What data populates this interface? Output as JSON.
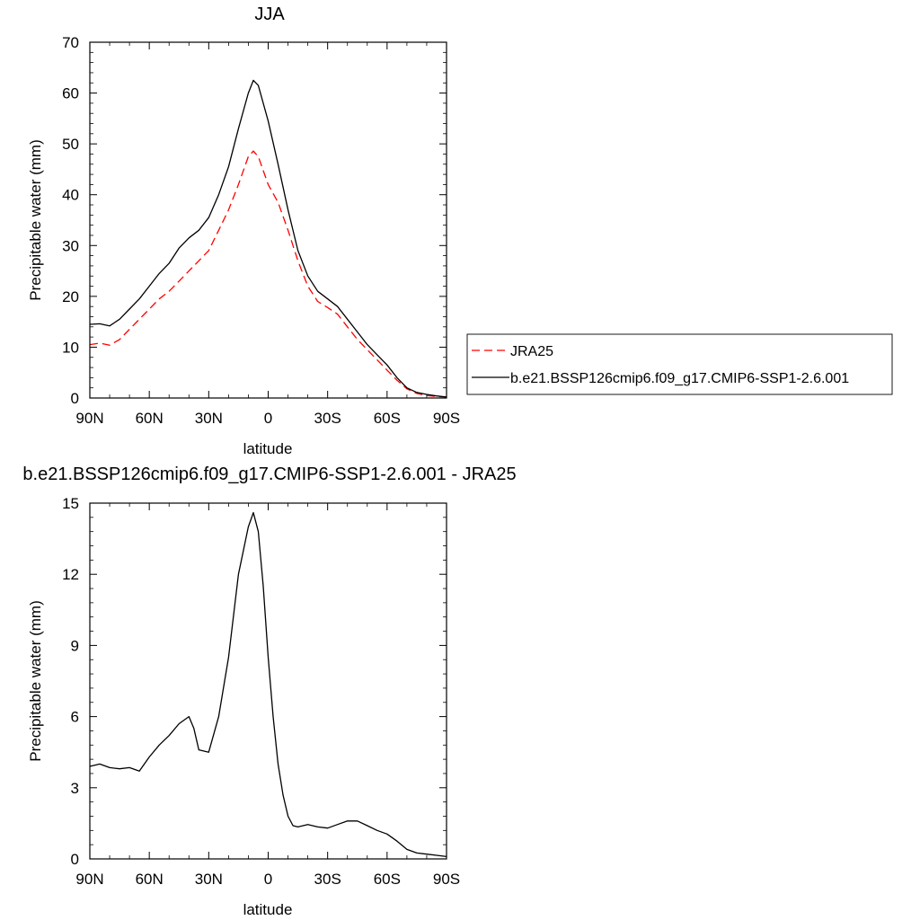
{
  "chart_data": [
    {
      "type": "line",
      "title": "JJA",
      "xlabel": "latitude",
      "ylabel": "Precipitable water (mm)",
      "xlim": [
        90,
        -90
      ],
      "ylim": [
        0,
        70
      ],
      "x_ticks": [
        90,
        60,
        30,
        0,
        -30,
        -60,
        -90
      ],
      "x_tick_labels": [
        "90N",
        "60N",
        "30N",
        "0",
        "30S",
        "60S",
        "90S"
      ],
      "y_ticks": [
        0,
        10,
        20,
        30,
        40,
        50,
        60,
        70
      ],
      "y_tick_labels": [
        "0",
        "10",
        "20",
        "30",
        "40",
        "50",
        "60",
        "70"
      ],
      "legend_position": "right",
      "series": [
        {
          "name": "JRA25",
          "color": "#ff0000",
          "dash": "dashed",
          "x": [
            90,
            85,
            80,
            75,
            70,
            65,
            60,
            55,
            50,
            45,
            40,
            35,
            30,
            25,
            20,
            15,
            10,
            7.5,
            5,
            0,
            -5,
            -10,
            -15,
            -20,
            -25,
            -30,
            -35,
            -40,
            -45,
            -50,
            -55,
            -60,
            -65,
            -70,
            -75,
            -80,
            -85,
            -90
          ],
          "values": [
            10.5,
            10.8,
            10.4,
            11.5,
            13.5,
            15.5,
            17.5,
            19.5,
            21,
            23,
            25,
            27,
            29,
            33,
            37,
            42,
            47.5,
            48.6,
            47.5,
            42,
            38.5,
            33,
            27,
            22,
            19,
            17.8,
            16.5,
            14,
            11.5,
            9.5,
            7.5,
            5.5,
            3.5,
            1.8,
            0.9,
            0.5,
            0.3,
            0.2
          ]
        },
        {
          "name": "b.e21.BSSP126cmip6.f09_g17.CMIP6-SSP1-2.6.001",
          "color": "#000000",
          "dash": "solid",
          "x": [
            90,
            85,
            80,
            75,
            70,
            65,
            60,
            55,
            50,
            45,
            40,
            35,
            30,
            25,
            20,
            15,
            10,
            7.5,
            5,
            0,
            -5,
            -10,
            -15,
            -20,
            -25,
            -30,
            -35,
            -40,
            -45,
            -50,
            -55,
            -60,
            -65,
            -70,
            -75,
            -80,
            -85,
            -90
          ],
          "values": [
            14.5,
            14.6,
            14.2,
            15.5,
            17.5,
            19.5,
            22,
            24.5,
            26.5,
            29.5,
            31.5,
            33,
            35.5,
            40,
            45.5,
            53,
            60,
            62.5,
            61.5,
            54.5,
            46,
            37,
            29,
            24,
            21,
            19.5,
            18,
            15.5,
            13,
            10.5,
            8.5,
            6.5,
            4,
            2,
            1.1,
            0.7,
            0.4,
            0.2
          ]
        }
      ]
    },
    {
      "type": "line",
      "title": "b.e21.BSSP126cmip6.f09_g17.CMIP6-SSP1-2.6.001 - JRA25",
      "xlabel": "latitude",
      "ylabel": "Precipitable water (mm)",
      "xlim": [
        90,
        -90
      ],
      "ylim": [
        0,
        15
      ],
      "x_ticks": [
        90,
        60,
        30,
        0,
        -30,
        -60,
        -90
      ],
      "x_tick_labels": [
        "90N",
        "60N",
        "30N",
        "0",
        "30S",
        "60S",
        "90S"
      ],
      "y_ticks": [
        0,
        3,
        6,
        9,
        12,
        15
      ],
      "y_tick_labels": [
        "0",
        "3",
        "6",
        "9",
        "12",
        "15"
      ],
      "series": [
        {
          "color": "#000000",
          "dash": "solid",
          "x": [
            90,
            85,
            80,
            75,
            70,
            65,
            60,
            55,
            50,
            45,
            40,
            37.5,
            35,
            30,
            25,
            20,
            15,
            10,
            7.5,
            5,
            2.5,
            0,
            -2.5,
            -5,
            -7.5,
            -10,
            -12.5,
            -15,
            -20,
            -25,
            -30,
            -35,
            -40,
            -45,
            -50,
            -55,
            -60,
            -65,
            -70,
            -75,
            -80,
            -85,
            -90
          ],
          "values": [
            3.9,
            4.0,
            3.85,
            3.8,
            3.85,
            3.7,
            4.3,
            4.8,
            5.2,
            5.7,
            6.0,
            5.5,
            4.6,
            4.5,
            6.0,
            8.5,
            12.0,
            14.0,
            14.6,
            13.8,
            11.5,
            8.5,
            6.0,
            4.0,
            2.7,
            1.8,
            1.4,
            1.35,
            1.45,
            1.35,
            1.3,
            1.45,
            1.6,
            1.6,
            1.4,
            1.2,
            1.05,
            0.75,
            0.4,
            0.25,
            0.2,
            0.15,
            0.1
          ]
        }
      ]
    }
  ]
}
